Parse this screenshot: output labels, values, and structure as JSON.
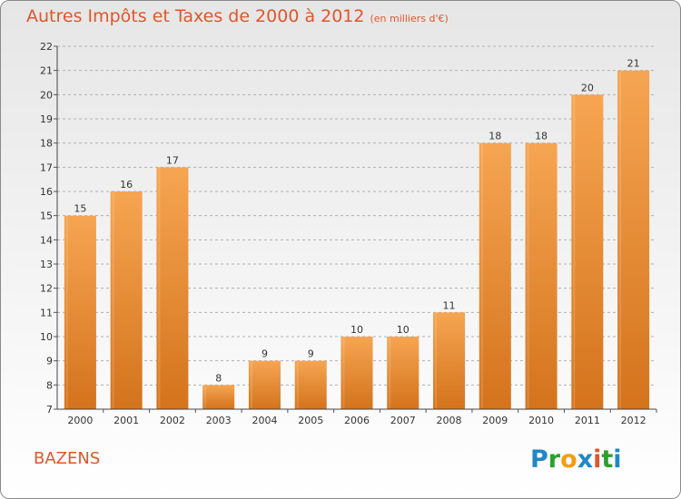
{
  "title": "Autres Impôts et Taxes de 2000 à 2012",
  "subtitle": "(en milliers d'€)",
  "commune": "BAZENS",
  "logo": {
    "letters": [
      "P",
      "r",
      "o",
      "x",
      "i",
      "t",
      "i"
    ],
    "colors": [
      "#1e88c8",
      "#2ca02c",
      "#f39c12",
      "#1e88c8",
      "#e0562a",
      "#2ca02c",
      "#1e88c8"
    ]
  },
  "colors": {
    "title": "#e0562a",
    "bar_top": "#f6a552",
    "bar_bottom": "#d4731c",
    "grid": "#b0b0b0"
  },
  "chart_data": {
    "type": "bar",
    "title": "Autres Impôts et Taxes de 2000 à 2012",
    "subtitle": "(en milliers d'€)",
    "xlabel": "",
    "ylabel": "",
    "categories": [
      "2000",
      "2001",
      "2002",
      "2003",
      "2004",
      "2005",
      "2006",
      "2007",
      "2008",
      "2009",
      "2010",
      "2011",
      "2012"
    ],
    "values": [
      15,
      16,
      17,
      8,
      9,
      9,
      10,
      10,
      11,
      18,
      18,
      20,
      21
    ],
    "ylim": [
      7,
      22
    ],
    "yticks": [
      7,
      8,
      9,
      10,
      11,
      12,
      13,
      14,
      15,
      16,
      17,
      18,
      19,
      20,
      21,
      22
    ],
    "grid": "horizontal dashed",
    "legend": "none"
  }
}
